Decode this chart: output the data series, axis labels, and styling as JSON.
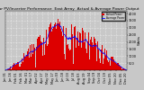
{
  "title": "Solar PV/Inverter Performance  East Array  Actual & Average Power Output",
  "ylabel": "Watts",
  "background_color": "#c8c8c8",
  "plot_bg_color": "#c8c8c8",
  "grid_color": "#ffffff",
  "bar_color": "#dd0000",
  "avg_line_color": "#0000ff",
  "n_bars": 365,
  "peak_value": 3800,
  "ylim": [
    0,
    4200
  ],
  "yticks": [
    500,
    1000,
    1500,
    2000,
    2500,
    3000,
    3500,
    4000
  ],
  "legend_items": [
    {
      "label": "Actual Power",
      "color": "#dd0000"
    },
    {
      "label": "Average Power",
      "color": "#0000ff"
    }
  ],
  "title_fontsize": 3.2,
  "axis_fontsize": 2.8,
  "tick_fontsize": 2.5
}
